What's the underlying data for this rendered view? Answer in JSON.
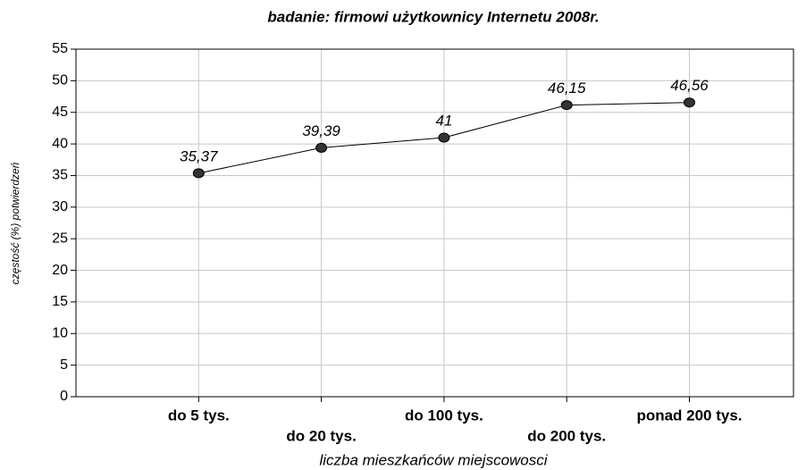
{
  "chart_data": {
    "type": "line",
    "title": "badanie: firmowi użytkownicy Internetu 2008r.",
    "x_label": "liczba mieszkańców miejscowosci",
    "y_label": "częstość (%) potwierdzeń",
    "categories": [
      "do 5 tys.",
      "do 20 tys.",
      "do 100 tys.",
      "do 200 tys.",
      "ponad 200 tys."
    ],
    "values": [
      35.37,
      39.39,
      41,
      46.15,
      46.56
    ],
    "value_labels": [
      "35,37",
      "39,39",
      "41",
      "46,15",
      "46,56"
    ],
    "color": "#000000",
    "ylim": [
      0,
      55
    ],
    "yticks": [
      0,
      5,
      10,
      15,
      20,
      25,
      30,
      35,
      40,
      45,
      50,
      55
    ],
    "grid": true
  }
}
